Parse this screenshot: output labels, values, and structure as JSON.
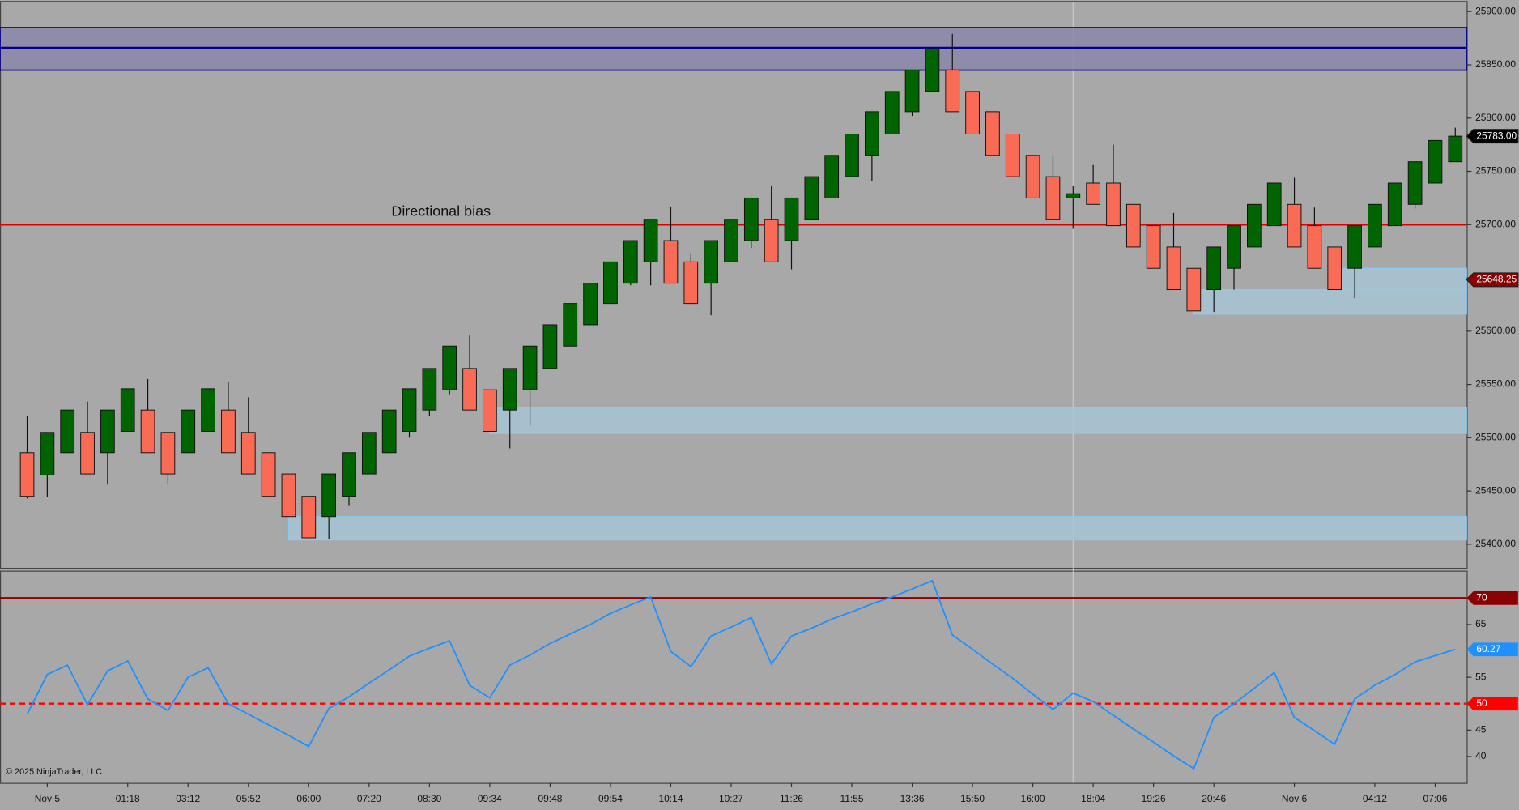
{
  "footer": "© 2025 NinjaTrader, LLC",
  "chart_data": [
    {
      "type": "candlestick",
      "categories": [
        null,
        "Nov 5",
        null,
        null,
        null,
        "01:18",
        null,
        null,
        "03:12",
        null,
        null,
        "05:52",
        null,
        null,
        "06:00",
        null,
        null,
        "07:20",
        null,
        null,
        "08:30",
        null,
        null,
        "09:34",
        null,
        null,
        "09:48",
        null,
        null,
        "09:54",
        null,
        null,
        "10:14",
        null,
        null,
        "10:27",
        null,
        null,
        "11:26",
        null,
        null,
        "11:55",
        null,
        null,
        "13:36",
        null,
        null,
        "15:50",
        null,
        null,
        "16:00",
        null,
        null,
        "18:04",
        null,
        null,
        "19:26",
        null,
        null,
        "20:46",
        null,
        null,
        null,
        "Nov 6",
        null,
        null,
        null,
        "04:12",
        null,
        null,
        "07:06",
        null
      ],
      "open": [
        25486,
        25465,
        25486,
        25505,
        25486,
        25506,
        25526,
        25505,
        25486,
        25506,
        25526,
        25505,
        25486,
        25466,
        25445,
        25426,
        25445,
        25466,
        25486,
        25506,
        25526,
        25545,
        25565,
        25545,
        25526,
        25545,
        25565,
        25586,
        25606,
        25626,
        25645,
        25665,
        25685,
        25665,
        25645,
        25665,
        25685,
        25705,
        25685,
        25705,
        25725,
        25745,
        25765,
        25785,
        25806,
        25825,
        25845,
        25825,
        25806,
        25785,
        25765,
        25745,
        25725,
        25739,
        25739,
        25719,
        25699,
        25679,
        25659,
        25639,
        25659,
        25679,
        25699,
        25719,
        25699,
        25679,
        25659,
        25679,
        25699,
        25719,
        25739,
        25759
      ],
      "high": [
        25520,
        25505,
        25526,
        25534,
        25526,
        25546,
        25555,
        25505,
        25526,
        25546,
        25552,
        25538,
        25486,
        25466,
        25445,
        25466,
        25486,
        25505,
        25526,
        25546,
        25565,
        25586,
        25596,
        25545,
        25565,
        25586,
        25606,
        25626,
        25645,
        25665,
        25685,
        25705,
        25717,
        25673,
        25685,
        25705,
        25725,
        25736,
        25725,
        25745,
        25765,
        25785,
        25806,
        25825,
        25845,
        25865,
        25879,
        25825,
        25806,
        25785,
        25765,
        25764,
        25736,
        25756,
        25775,
        25719,
        25699,
        25711,
        25659,
        25679,
        25699,
        25719,
        25739,
        25744,
        25716,
        25679,
        25699,
        25719,
        25739,
        25759,
        25779,
        25791
      ],
      "low": [
        25443,
        25444,
        25486,
        25466,
        25456,
        25506,
        25486,
        25456,
        25486,
        25506,
        25486,
        25466,
        25445,
        25426,
        25406,
        25405,
        25436,
        25466,
        25486,
        25500,
        25520,
        25540,
        25526,
        25506,
        25490,
        25511,
        25565,
        25586,
        25606,
        25626,
        25643,
        25643,
        25645,
        25626,
        25615,
        25665,
        25678,
        25665,
        25658,
        25705,
        25725,
        25745,
        25741,
        25785,
        25802,
        25825,
        25806,
        25785,
        25765,
        25745,
        25725,
        25705,
        25696,
        25719,
        25699,
        25679,
        25659,
        25639,
        25619,
        25618,
        25639,
        25679,
        25699,
        25679,
        25659,
        25639,
        25631,
        25679,
        25699,
        25715,
        25739,
        25759
      ],
      "close": [
        25445,
        25505,
        25526,
        25466,
        25526,
        25546,
        25486,
        25466,
        25526,
        25546,
        25486,
        25466,
        25445,
        25426,
        25406,
        25466,
        25486,
        25505,
        25526,
        25546,
        25565,
        25586,
        25526,
        25506,
        25565,
        25586,
        25606,
        25626,
        25645,
        25665,
        25685,
        25705,
        25645,
        25626,
        25685,
        25705,
        25725,
        25665,
        25725,
        25745,
        25765,
        25785,
        25806,
        25825,
        25845,
        25865,
        25806,
        25785,
        25765,
        25745,
        25725,
        25705,
        25729,
        25719,
        25699,
        25679,
        25659,
        25639,
        25619,
        25679,
        25699,
        25719,
        25739,
        25679,
        25659,
        25639,
        25699,
        25719,
        25739,
        25759,
        25779,
        25783
      ],
      "up_color": "#006400",
      "down_color": "#fa6b55",
      "ylim": [
        25377,
        25909
      ],
      "yticks": [
        {
          "value": 25400,
          "label": "25400.00"
        },
        {
          "value": 25450,
          "label": "25450.00"
        },
        {
          "value": 25500,
          "label": "25500.00"
        },
        {
          "value": 25550,
          "label": "25550.00"
        },
        {
          "value": 25600,
          "label": "25600.00"
        },
        {
          "value": 25650,
          "label": "25650.00"
        },
        {
          "value": 25700,
          "label": "25700.00"
        },
        {
          "value": 25750,
          "label": "25750.00"
        },
        {
          "value": 25800,
          "label": "25800.00"
        },
        {
          "value": 25850,
          "label": "25850.00"
        },
        {
          "value": 25900,
          "label": "25900.00"
        }
      ],
      "zones": [
        {
          "low": 25845,
          "high": 25885,
          "start": 0,
          "color": "#8c8aa8",
          "stroke": "#00008b"
        },
        {
          "low": 25404,
          "high": 25426,
          "start": 13,
          "color": "#a6c4d2",
          "stroke": "#87cefa"
        },
        {
          "low": 25504,
          "high": 25528,
          "start": 23,
          "color": "#a6c4d2",
          "stroke": "#87cefa"
        },
        {
          "low": 25616,
          "high": 25639,
          "start": 58,
          "color": "#a6c4d2",
          "stroke": "#87cefa"
        },
        {
          "low": 25639,
          "high": 25659,
          "start": 65,
          "color": "#a6c4d2",
          "stroke": "#87cefa"
        }
      ],
      "lines": [
        {
          "value": 25866,
          "color": "#00008b"
        },
        {
          "value": 25700,
          "color": "#e00000",
          "label": "Directional bias"
        }
      ],
      "price_markers": [
        {
          "value": 25783,
          "label": "25783.00",
          "color": "#000000"
        },
        {
          "value": 25648.25,
          "label": "25648.25",
          "color": "#8b0000"
        }
      ]
    },
    {
      "type": "line",
      "values": [
        48.0,
        55.5,
        57.3,
        49.8,
        56.2,
        58.1,
        50.9,
        48.7,
        55.0,
        56.8,
        50.0,
        48.0,
        46.0,
        44.0,
        41.9,
        49.1,
        51.3,
        53.9,
        56.4,
        59.0,
        60.5,
        61.9,
        53.5,
        51.1,
        57.3,
        59.2,
        61.4,
        63.2,
        65.0,
        67.1,
        68.7,
        70.2,
        59.9,
        57.0,
        62.8,
        64.5,
        66.3,
        57.5,
        62.8,
        64.3,
        66.0,
        67.4,
        68.9,
        70.2,
        71.7,
        73.3,
        63.0,
        60.3,
        57.5,
        54.8,
        51.8,
        48.9,
        52.0,
        50.4,
        47.8,
        45.2,
        42.7,
        40.1,
        37.7,
        47.4,
        50.0,
        52.9,
        55.9,
        47.4,
        44.9,
        42.3,
        50.9,
        53.5,
        55.5,
        57.9,
        59.1,
        60.27
      ],
      "color": "#1e90ff",
      "ylim": [
        35,
        75
      ],
      "yticks": [
        40,
        45,
        55,
        65
      ],
      "levels": [
        {
          "value": 70,
          "color": "#8b0000",
          "dashed": false
        },
        {
          "value": 50,
          "color": "#ff0000",
          "dashed": true
        }
      ],
      "marker": 60.27,
      "marker_color": "#1e90ff"
    }
  ]
}
